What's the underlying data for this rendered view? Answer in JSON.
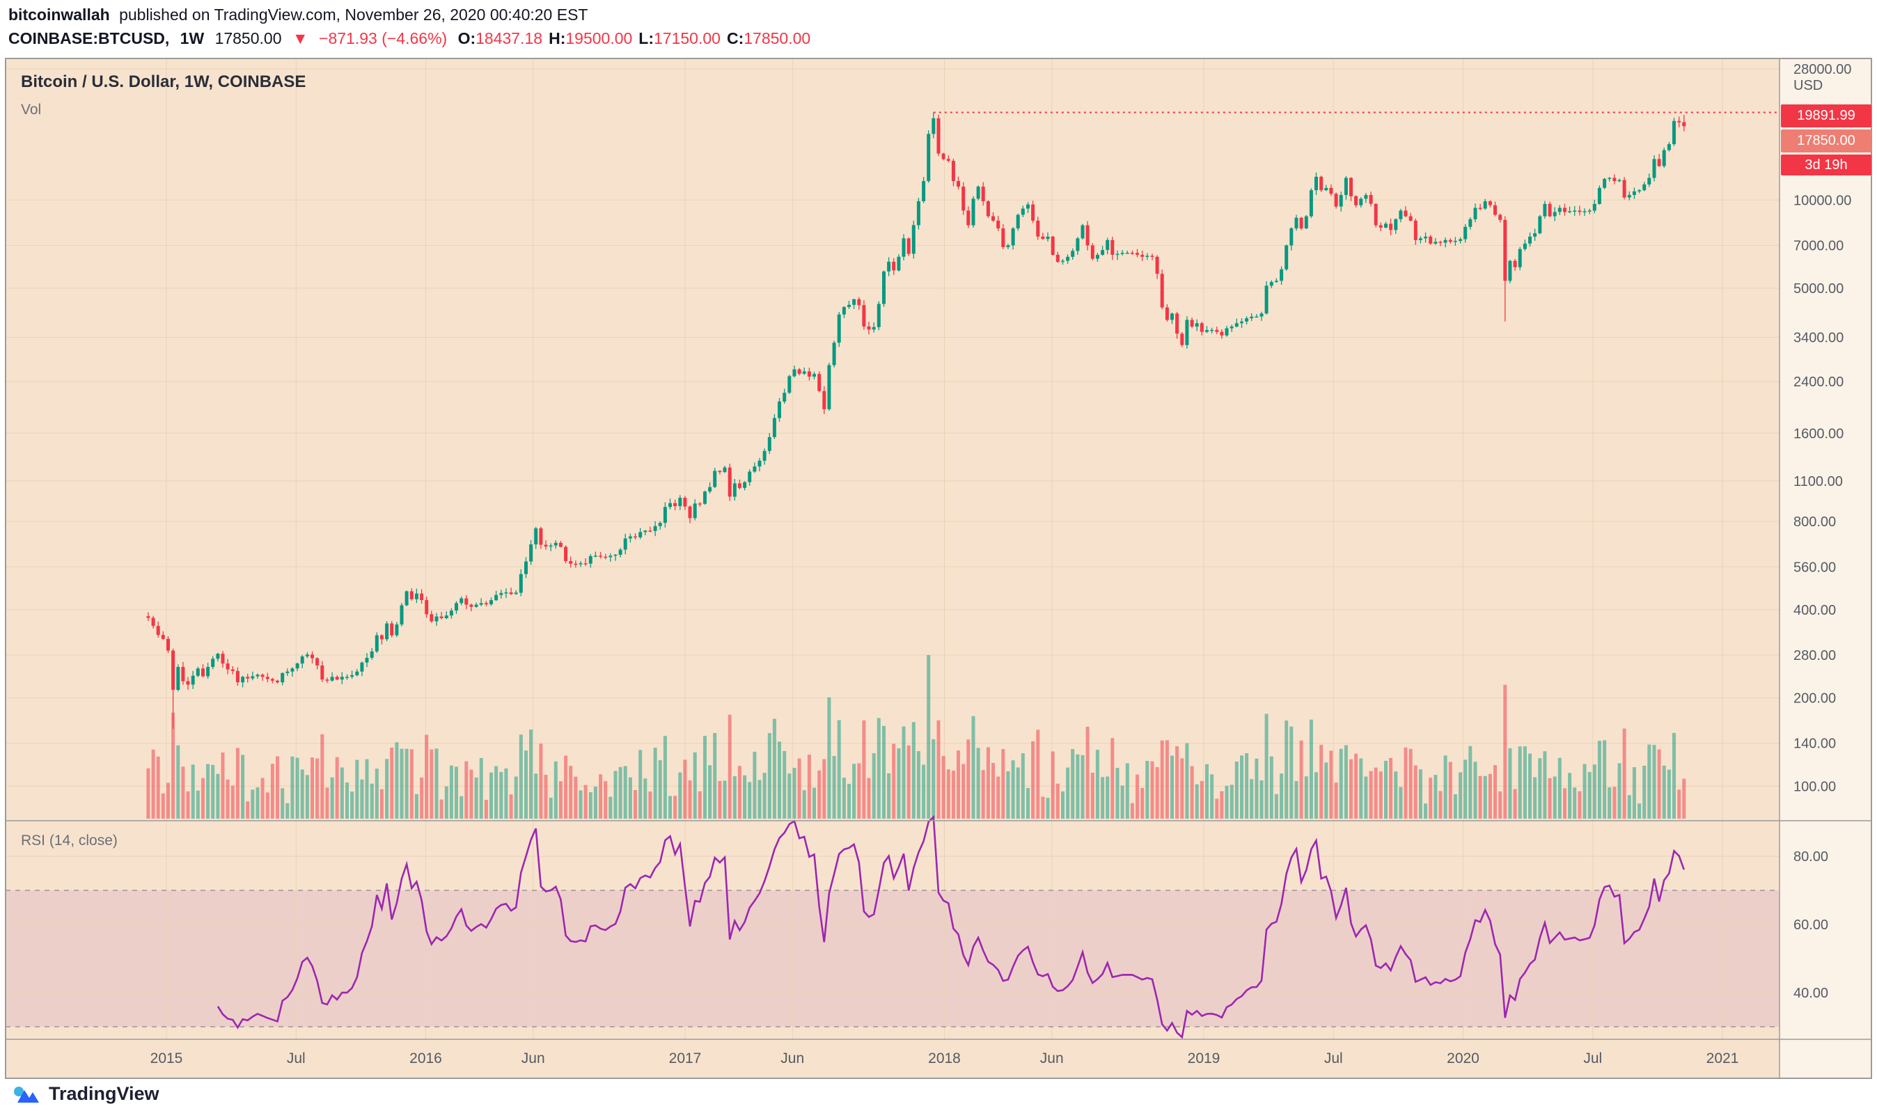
{
  "header": {
    "author": "bitcoinwallah",
    "published": "published on TradingView.com, November 26, 2020 00:40:20 EST"
  },
  "ticker": {
    "symbol": "COINBASE:BTCUSD,",
    "interval": "1W",
    "last": "17850.00",
    "direction_icon": "▼",
    "change": "−871.93 (−4.66%)",
    "ohlc": [
      {
        "label": "O:",
        "value": "18437.18"
      },
      {
        "label": "H:",
        "value": "19500.00"
      },
      {
        "label": "L:",
        "value": "17150.00"
      },
      {
        "label": "C:",
        "value": "17850.00"
      }
    ]
  },
  "chart": {
    "title": "Bitcoin / U.S. Dollar, 1W, COINBASE",
    "vol_label": "Vol",
    "unit": "USD",
    "labels": {
      "ath": "19891.99",
      "last": "17850.00",
      "countdown": "3d 19h"
    }
  },
  "rsi_panel": {
    "label": "RSI (14, close)",
    "tick_values": [
      80,
      60,
      40
    ],
    "band": [
      30,
      70
    ],
    "period": 14
  },
  "footer": {
    "brand": "TradingView"
  },
  "colors": {
    "pane_bg": "#f7e3cd",
    "axis_bg": "#fbf3e8",
    "grid": "#e9d2b6",
    "border": "#9b9b9b",
    "up": "#089981",
    "down": "#f23645",
    "vol_up": "rgba(8,153,129,0.50)",
    "vol_down": "rgba(242,54,69,0.50)",
    "rsi_line": "#9c27b0",
    "rsi_band": "rgba(156,39,176,0.10)",
    "band_edge": "rgba(110,113,125,0.65)",
    "axis_text": "#555a64"
  },
  "chart_data": {
    "type": "candlestick+volume+rsi",
    "title": "Bitcoin / U.S. Dollar, 1W, COINBASE",
    "symbol": "COINBASE:BTCUSD",
    "interval": "1W",
    "price_scale": "log",
    "ylabel": "USD",
    "price_ticks": [
      28000,
      10000,
      7000,
      5000,
      3400,
      2400,
      1600,
      1100,
      800,
      560,
      400,
      280,
      200,
      140,
      100
    ],
    "time_ticks": [
      {
        "label": "2015",
        "t": 2015.0
      },
      {
        "label": "Jul",
        "t": 2015.5
      },
      {
        "label": "2016",
        "t": 2016.0
      },
      {
        "label": "Jun",
        "t": 2016.414
      },
      {
        "label": "2017",
        "t": 2017.0
      },
      {
        "label": "Jun",
        "t": 2017.414
      },
      {
        "label": "2018",
        "t": 2018.0
      },
      {
        "label": "Jun",
        "t": 2018.414
      },
      {
        "label": "2019",
        "t": 2019.0
      },
      {
        "label": "Jul",
        "t": 2019.5
      },
      {
        "label": "2020",
        "t": 2020.0
      },
      {
        "label": "Jul",
        "t": 2020.5
      },
      {
        "label": "2021",
        "t": 2021.0
      }
    ],
    "start_time": 2014.93,
    "weeks_per_year": 52.18,
    "all_time_high": 19891.99,
    "last_candle": {
      "open": 18437.18,
      "high": 19500,
      "low": 17150,
      "close": 17850
    },
    "weekly_closes": [
      375,
      352,
      328,
      318,
      290,
      213,
      255,
      228,
      222,
      238,
      252,
      237,
      255,
      272,
      283,
      262,
      250,
      247,
      226,
      236,
      233,
      237,
      240,
      236,
      232,
      229,
      226,
      243,
      246,
      252,
      262,
      277,
      281,
      273,
      258,
      231,
      229,
      236,
      231,
      236,
      236,
      239,
      246,
      264,
      274,
      288,
      327,
      317,
      359,
      327,
      356,
      414,
      462,
      434,
      454,
      431,
      386,
      365,
      379,
      374,
      382,
      397,
      421,
      437,
      416,
      409,
      416,
      421,
      417,
      431,
      449,
      456,
      458,
      452,
      457,
      529,
      584,
      668,
      758,
      666,
      657,
      662,
      676,
      655,
      586,
      574,
      572,
      576,
      574,
      609,
      611,
      606,
      604,
      611,
      616,
      641,
      700,
      711,
      706,
      736,
      744,
      742,
      771,
      791,
      896,
      924,
      902,
      963,
      899,
      821,
      921,
      919,
      1012,
      1048,
      1190,
      1179,
      1222,
      972,
      1079,
      1041,
      1089,
      1183,
      1232,
      1289,
      1392,
      1552,
      1803,
      2052,
      2198,
      2504,
      2642,
      2553,
      2601,
      2496,
      2548,
      2228,
      1932,
      2732,
      3258,
      4066,
      4312,
      4386,
      4583,
      4376,
      3702,
      3612,
      3682,
      4418,
      5702,
      6153,
      5748,
      6402,
      7398,
      6552,
      8204,
      9902,
      11598,
      16802,
      18998,
      14398,
      13798,
      13602,
      11598,
      11102,
      9202,
      8198,
      10102,
      11102,
      9898,
      8802,
      8498,
      7998,
      6902,
      6998,
      7998,
      8898,
      9348,
      9652,
      8498,
      7502,
      7358,
      7498,
      6502,
      6148,
      6198,
      6398,
      6702,
      7398,
      8198,
      6998,
      6302,
      6498,
      6748,
      7298,
      6498,
      6548,
      6598,
      6602,
      6598,
      6498,
      6398,
      6448,
      6398,
      5598,
      4298,
      3898,
      4098,
      3498,
      3198,
      3898,
      3698,
      3798,
      3548,
      3598,
      3602,
      3548,
      3448,
      3648,
      3698,
      3798,
      3848,
      3948,
      3998,
      4002,
      4098,
      5098,
      5248,
      5298,
      5798,
      6998,
      7998,
      8698,
      7998,
      8798,
      10798,
      11998,
      10798,
      10998,
      10498,
      9498,
      10398,
      11898,
      10298,
      9598,
      10098,
      10398,
      9698,
      8198,
      8048,
      8298,
      7898,
      8598,
      9198,
      8798,
      8498,
      7298,
      7398,
      7498,
      7098,
      7198,
      7148,
      7298,
      7198,
      7248,
      7348,
      8098,
      8598,
      9398,
      9348,
      9898,
      9598,
      8898,
      8548,
      5298,
      6198,
      5898,
      6798,
      7098,
      7498,
      7698,
      8798,
      9698,
      8798,
      9098,
      9398,
      9098,
      9148,
      9198,
      9098,
      9148,
      9198,
      9698,
      10998,
      11798,
      11898,
      11598,
      11698,
      10198,
      10398,
      10698,
      10798,
      11298,
      11898,
      13798,
      13048,
      14798,
      15498,
      18598,
      18398,
      17850
    ],
    "high_overrides": {
      "158": 19891.99,
      "309": 19500
    },
    "low_overrides": {
      "5": 157,
      "273": 3850,
      "309": 17150
    },
    "rsi": {
      "period": 14,
      "upper_band": 70,
      "lower_band": 30,
      "ticks": [
        80,
        60,
        40
      ]
    }
  }
}
